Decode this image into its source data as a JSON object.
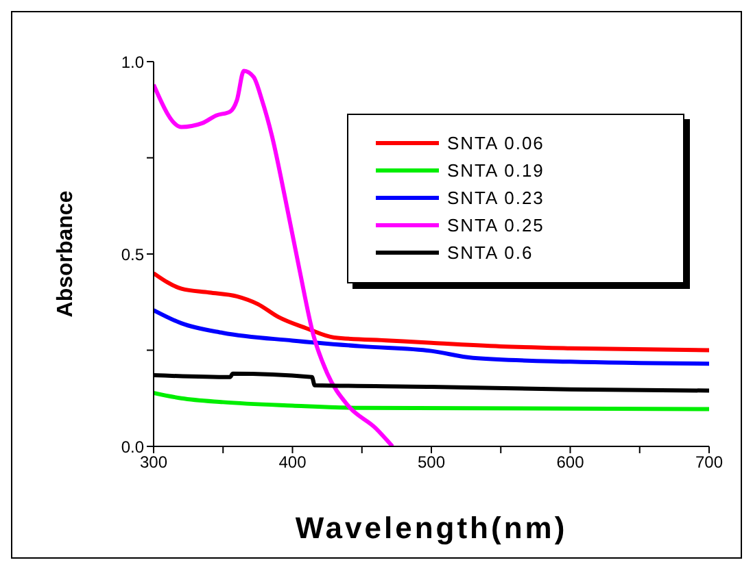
{
  "chart_data": {
    "type": "line",
    "xlabel": "Wavelength(nm)",
    "ylabel": "Absorbance",
    "xlim": [
      300,
      700
    ],
    "xticks": [
      300,
      {
        "value": 350,
        "label": null
      },
      400,
      {
        "value": 450,
        "label": null
      },
      500,
      {
        "value": 550,
        "label": null
      },
      600,
      {
        "value": 650,
        "label": null
      },
      700
    ],
    "ylim": [
      0,
      1
    ],
    "yticks": [
      {
        "value": 0,
        "label": "0.0"
      },
      {
        "value": 0.25,
        "label": null
      },
      0.5,
      {
        "value": 0.75,
        "label": null
      },
      {
        "value": 1,
        "label": "1.0"
      }
    ],
    "grid": false,
    "legend": "top right",
    "marker": "none",
    "line_style": "solid",
    "series": [
      {
        "name": "SNTA 0.06",
        "color": "#ff0000",
        "x": [
          300,
          320,
          340,
          360,
          375,
          390,
          410,
          430,
          470,
          500,
          550,
          600,
          700
        ],
        "values": [
          0.45,
          0.41,
          0.4,
          0.39,
          0.37,
          0.336,
          0.307,
          0.283,
          0.275,
          0.269,
          0.26,
          0.255,
          0.25
        ]
      },
      {
        "name": "SNTA 0.19",
        "color": "#00ee00",
        "x": [
          300,
          320,
          350,
          400,
          450,
          700
        ],
        "values": [
          0.139,
          0.125,
          0.115,
          0.106,
          0.1,
          0.097
        ]
      },
      {
        "name": "SNTA 0.23",
        "color": "#0000ff",
        "x": [
          300,
          320,
          350,
          400,
          450,
          500,
          530,
          600,
          700
        ],
        "values": [
          0.354,
          0.32,
          0.295,
          0.275,
          0.26,
          0.248,
          0.23,
          0.22,
          0.215
        ]
      },
      {
        "name": "SNTA 0.25",
        "color": "#ff00ff",
        "x": [
          300,
          320,
          335,
          345,
          355,
          360,
          365,
          372,
          378,
          385,
          395,
          405,
          415,
          425,
          440,
          460,
          472
        ],
        "values": [
          0.94,
          0.83,
          0.84,
          0.86,
          0.87,
          0.9,
          0.976,
          0.96,
          0.9,
          0.81,
          0.64,
          0.46,
          0.29,
          0.19,
          0.106,
          0.047,
          0
        ]
      },
      {
        "name": "SNTA 0.6",
        "color": "#000000",
        "x": [
          300,
          355,
          357,
          414,
          416,
          500,
          600,
          700
        ],
        "values": [
          0.185,
          0.18,
          0.189,
          0.18,
          0.159,
          0.155,
          0.148,
          0.145
        ]
      }
    ]
  }
}
